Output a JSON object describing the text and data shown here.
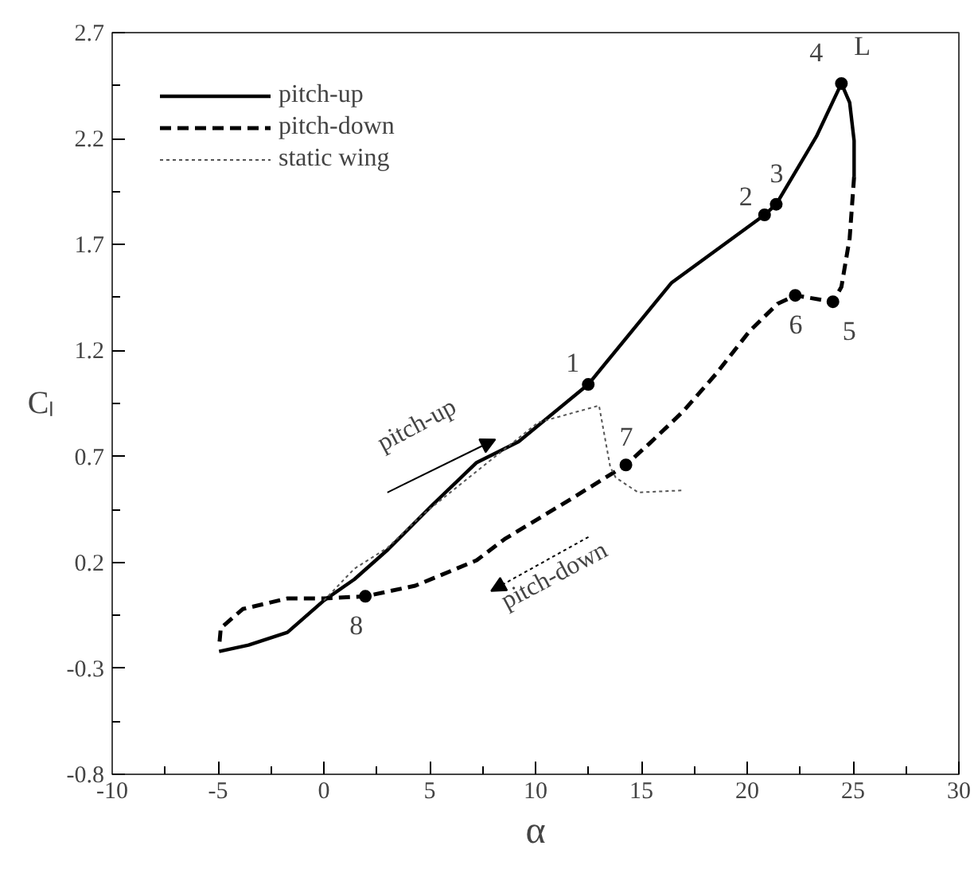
{
  "chart_data": {
    "type": "line",
    "xlabel": "α",
    "ylabel": "Cₗ",
    "xlim": [
      -10,
      30
    ],
    "xticks": [
      -10,
      -5,
      0,
      5,
      10,
      15,
      20,
      25,
      30
    ],
    "ylim": [
      -0.8,
      2.7
    ],
    "yticks": [
      -0.8,
      -0.3,
      0.2,
      0.7,
      1.2,
      1.7,
      2.2,
      2.7
    ],
    "grid": false,
    "legend": "top left",
    "series": [
      {
        "name": "pitch-up",
        "color": "#000000",
        "line_style": "solid",
        "x": [
          -4.95,
          -3.56,
          -1.72,
          0,
          1.44,
          3.02,
          5.12,
          7.2,
          9.2,
          12.49,
          16.43,
          20.82,
          21.37,
          23.27,
          24.45,
          24.84,
          25.05,
          25.05
        ],
        "values": [
          -0.22,
          -0.19,
          -0.13,
          0.02,
          0.12,
          0.26,
          0.47,
          0.67,
          0.77,
          1.04,
          1.52,
          1.84,
          1.89,
          2.21,
          2.46,
          2.37,
          2.19,
          2.02
        ]
      },
      {
        "name": "pitch-down",
        "color": "#000000",
        "line_style": "dashed",
        "x": [
          25.05,
          24.84,
          24.45,
          24.05,
          22.27,
          21.43,
          20.1,
          18.53,
          16.95,
          15.37,
          14.27,
          11.69,
          8.54,
          7.22,
          4.32,
          1.96,
          0,
          -1.72,
          -3.83,
          -4.87,
          -4.95
        ],
        "values": [
          2.02,
          1.73,
          1.5,
          1.43,
          1.46,
          1.42,
          1.29,
          1.09,
          0.91,
          0.76,
          0.66,
          0.5,
          0.31,
          0.21,
          0.09,
          0.04,
          0.03,
          0.03,
          -0.02,
          -0.11,
          -0.2
        ]
      },
      {
        "name": "static wing",
        "color": "#555555",
        "line_style": "dotted",
        "x": [
          0,
          1.44,
          3.02,
          4.6,
          7.22,
          10.12,
          13.0,
          13.53,
          13.79,
          14.85,
          16.95
        ],
        "values": [
          0.02,
          0.17,
          0.27,
          0.42,
          0.63,
          0.86,
          0.94,
          0.65,
          0.6,
          0.53,
          0.54
        ]
      },
      {
        "type": "scatter",
        "marker": "circle",
        "color": "#000000",
        "x": [
          12.49,
          20.82,
          21.37,
          24.45,
          24.05,
          22.27,
          14.27,
          1.96
        ],
        "values": [
          1.04,
          1.84,
          1.89,
          2.46,
          1.43,
          1.46,
          0.66,
          0.04
        ]
      }
    ],
    "annotations": [
      {
        "text": "1",
        "x": 12.49,
        "y": 1.04
      },
      {
        "text": "2",
        "x": 20.82,
        "y": 1.84
      },
      {
        "text": "3",
        "x": 21.37,
        "y": 1.89
      },
      {
        "text": "4",
        "x": 24.45,
        "y": 2.46
      },
      {
        "text": "L",
        "x": 24.45,
        "y": 2.46
      },
      {
        "text": "5",
        "x": 24.05,
        "y": 1.43
      },
      {
        "text": "6",
        "x": 22.27,
        "y": 1.46
      },
      {
        "text": "7",
        "x": 14.27,
        "y": 0.66
      },
      {
        "text": "8",
        "x": 1.96,
        "y": 0.04
      },
      "pitch-up",
      "pitch-down"
    ]
  }
}
